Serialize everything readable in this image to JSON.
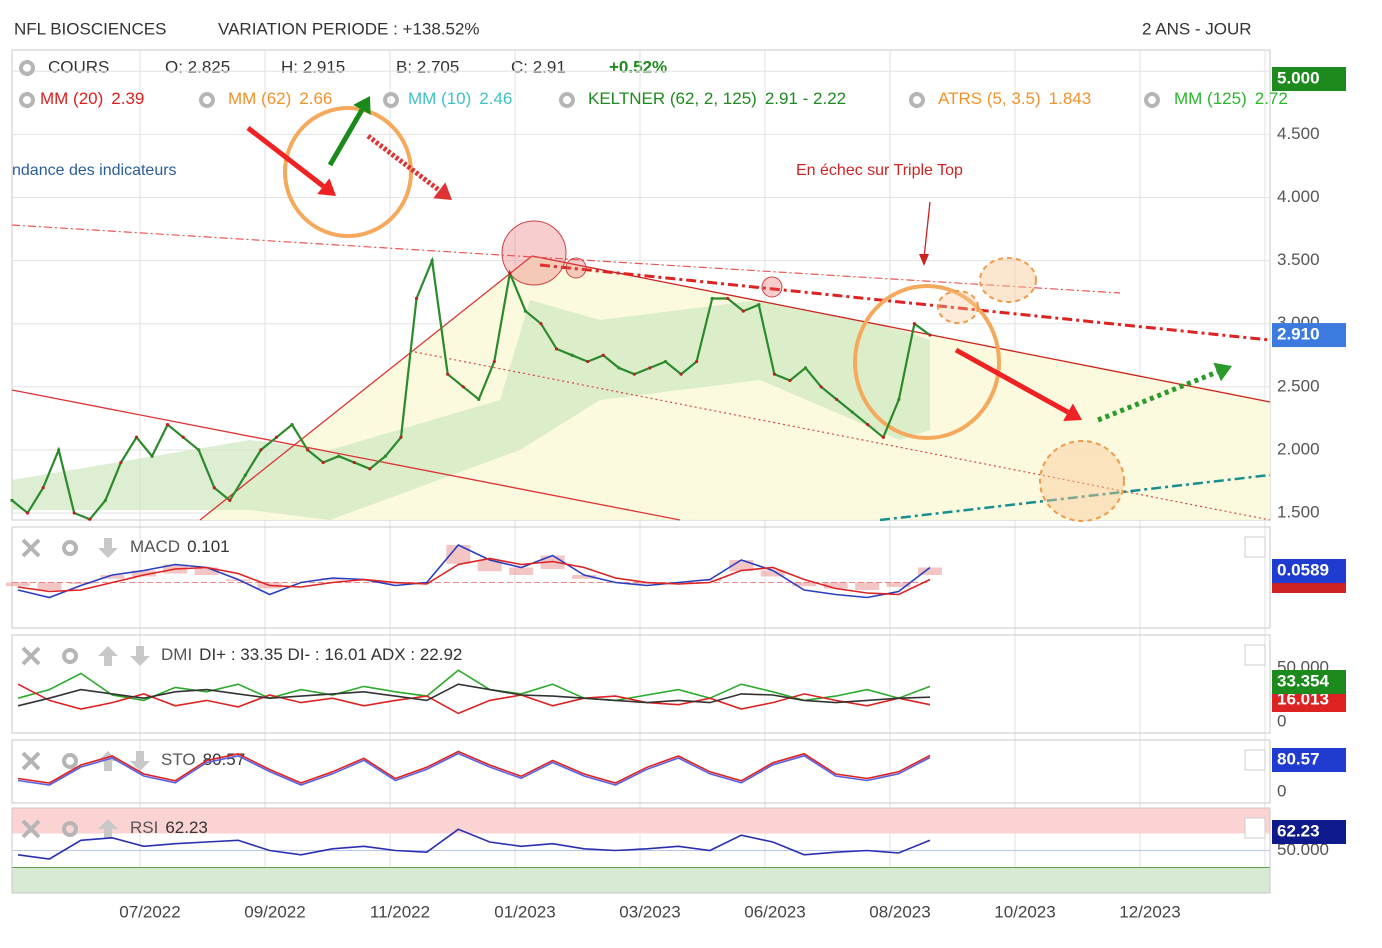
{
  "header": {
    "symbol": "NFL BIOSCIENCES",
    "variation": "VARIATION PERIODE : +138.52%",
    "period": "2 ANS - JOUR"
  },
  "quote": {
    "label": "COURS",
    "open": "O: 2.825",
    "high": "H: 2.915",
    "low": "B: 2.705",
    "close": "C: 2.91",
    "change": "+0.52%"
  },
  "indicators": [
    {
      "name": "MM (20)",
      "value": "2.39",
      "color": "#d9211e"
    },
    {
      "name": "MM (62)",
      "value": "2.66",
      "color": "#f0922a"
    },
    {
      "name": "MM (10)",
      "value": "2.46",
      "color": "#3fc0c8"
    },
    {
      "name": "KELTNER (62, 2, 125)",
      "value": "2.91 - 2.22",
      "color": "#1d8a1d"
    },
    {
      "name": "ATRS (5, 3.5)",
      "value": "1.843",
      "color": "#f0922a"
    },
    {
      "name": "MM (125)",
      "value": "2.72",
      "color": "#2bb52b"
    }
  ],
  "annotations": {
    "trend": "ndance des indicateurs",
    "triple_top": "En échec sur Triple Top"
  },
  "price_axis": {
    "ticks": [
      {
        "value": 5,
        "label": "5.000"
      },
      {
        "value": 4.5,
        "label": "4.500"
      },
      {
        "value": 4,
        "label": "4.000"
      },
      {
        "value": 3.5,
        "label": "3.500"
      },
      {
        "value": 3,
        "label": "3.000"
      },
      {
        "value": 2.5,
        "label": "2.500"
      },
      {
        "value": 2,
        "label": "2.000"
      },
      {
        "value": 1.5,
        "label": "1.500"
      }
    ],
    "last": {
      "value": 2.91,
      "label": "2.910"
    }
  },
  "price": {
    "values": [
      1.6,
      1.5,
      1.7,
      2.0,
      1.5,
      1.45,
      1.6,
      1.9,
      2.1,
      1.95,
      2.2,
      2.1,
      2.0,
      1.7,
      1.6,
      1.8,
      2.0,
      2.1,
      2.2,
      2.0,
      1.9,
      1.95,
      1.9,
      1.85,
      1.95,
      2.1,
      3.2,
      3.5,
      2.6,
      2.5,
      2.4,
      2.7,
      3.4,
      3.1,
      3.0,
      2.8,
      2.75,
      2.7,
      2.75,
      2.65,
      2.6,
      2.65,
      2.7,
      2.6,
      2.7,
      3.2,
      3.2,
      3.1,
      3.15,
      2.6,
      2.55,
      2.65,
      2.5,
      2.4,
      2.3,
      2.2,
      2.1,
      2.4,
      3.0,
      2.91
    ]
  },
  "time_axis": [
    "07/2022",
    "09/2022",
    "11/2022",
    "01/2023",
    "03/2023",
    "06/2023",
    "08/2023",
    "10/2023",
    "12/2023"
  ],
  "macd": {
    "label": "MACD",
    "value": "0.101",
    "last": "0.0589",
    "values": [
      -0.05,
      -0.1,
      -0.02,
      0.05,
      0.08,
      0.12,
      0.1,
      0.02,
      -0.08,
      0.0,
      0.03,
      0.02,
      -0.02,
      0.0,
      0.25,
      0.15,
      0.1,
      0.18,
      0.05,
      0.0,
      -0.02,
      0.0,
      0.02,
      0.15,
      0.08,
      -0.05,
      -0.08,
      -0.1,
      -0.06,
      0.1
    ],
    "signal": [
      -0.03,
      -0.06,
      -0.05,
      0.0,
      0.05,
      0.09,
      0.1,
      0.06,
      -0.02,
      -0.03,
      0.0,
      0.02,
      0.0,
      -0.01,
      0.12,
      0.16,
      0.12,
      0.14,
      0.1,
      0.03,
      0.0,
      -0.01,
      0.0,
      0.08,
      0.1,
      0.02,
      -0.04,
      -0.07,
      -0.08,
      0.02
    ]
  },
  "dmi": {
    "label": "DMI",
    "value": "DI+ : 33.35 DI- : 16.01 ADX : 22.92",
    "ticks": [
      {
        "value": 50,
        "label": "50.000"
      },
      {
        "value": 0,
        "label": "0"
      }
    ],
    "di_plus_last": "33.354",
    "di_minus_last": "16.013",
    "di_plus": [
      22,
      30,
      45,
      25,
      20,
      32,
      28,
      35,
      22,
      30,
      25,
      33,
      28,
      24,
      48,
      30,
      26,
      35,
      22,
      20,
      25,
      30,
      22,
      35,
      28,
      20,
      24,
      30,
      22,
      33
    ],
    "di_minus": [
      35,
      20,
      12,
      18,
      26,
      15,
      20,
      14,
      25,
      18,
      22,
      15,
      20,
      24,
      8,
      20,
      25,
      15,
      22,
      24,
      18,
      16,
      22,
      12,
      18,
      26,
      20,
      15,
      22,
      16
    ],
    "adx": [
      15,
      22,
      30,
      26,
      22,
      28,
      30,
      26,
      22,
      24,
      26,
      28,
      24,
      20,
      35,
      30,
      25,
      24,
      22,
      20,
      18,
      20,
      18,
      26,
      25,
      20,
      18,
      20,
      22,
      23
    ]
  },
  "sto": {
    "label": "STO",
    "value": "80.57",
    "last": "80.57",
    "ticks": [
      {
        "value": 0,
        "label": "0"
      }
    ],
    "values": [
      30,
      20,
      60,
      80,
      40,
      25,
      70,
      85,
      50,
      20,
      45,
      75,
      30,
      55,
      90,
      60,
      35,
      70,
      40,
      20,
      55,
      80,
      45,
      25,
      65,
      85,
      40,
      30,
      45,
      81
    ]
  },
  "rsi": {
    "label": "RSI",
    "value": "62.23",
    "last": "62.23",
    "ticks": [
      {
        "value": 50,
        "label": "50.000"
      }
    ],
    "values": [
      45,
      40,
      62,
      65,
      55,
      58,
      60,
      62,
      50,
      45,
      52,
      55,
      50,
      48,
      75,
      60,
      55,
      58,
      52,
      50,
      52,
      55,
      50,
      68,
      60,
      45,
      48,
      50,
      47,
      62
    ]
  }
}
